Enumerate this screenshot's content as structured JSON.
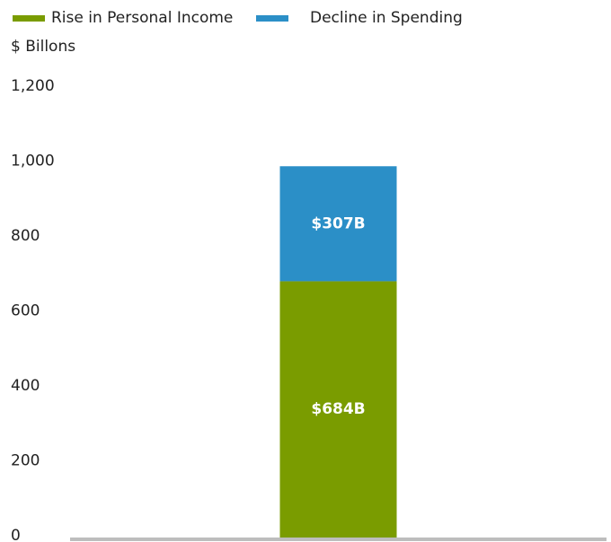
{
  "chart_data": {
    "type": "stacked_bar",
    "y_label": "$ Billons",
    "categories": [
      null
    ],
    "series": [
      {
        "name": "Rise in Personal Income",
        "color": "#7a9c00",
        "values": [
          684
        ],
        "value_labels": [
          "$684B"
        ]
      },
      {
        "name": "Decline in Spending",
        "color": "#2b8fc7",
        "values": [
          307
        ],
        "value_labels": [
          "$307B"
        ]
      }
    ],
    "ylim": [
      0,
      1200
    ],
    "yticks": [
      0,
      200,
      400,
      600,
      800,
      {
        "value": 1000,
        "label": "1,000"
      },
      {
        "value": 1200,
        "label": "1,200"
      }
    ],
    "legend": "top-left"
  }
}
